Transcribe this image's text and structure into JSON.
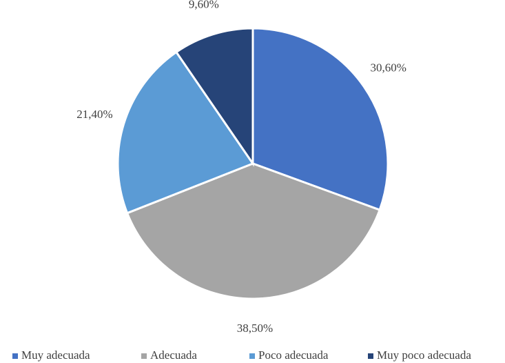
{
  "chart_data": {
    "type": "pie",
    "categories": [
      "Muy adecuada",
      "Adecuada",
      "Poco adecuada",
      "Muy poco adecuada"
    ],
    "values": [
      30.6,
      38.5,
      21.4,
      9.6
    ],
    "value_labels": [
      "30,60%",
      "38,50%",
      "21,40%",
      "9,60%"
    ],
    "colors": [
      "#4472c4",
      "#a5a5a5",
      "#5b9bd5",
      "#264478"
    ],
    "legend": "bottom"
  }
}
